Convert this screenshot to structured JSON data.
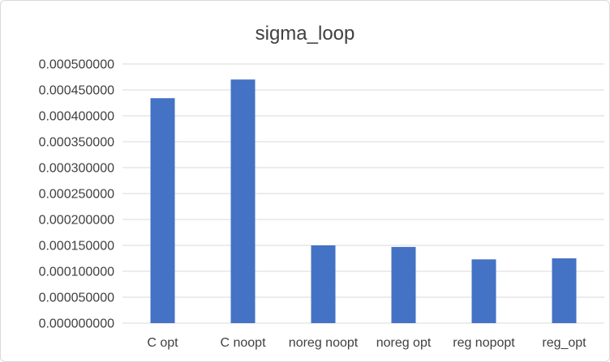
{
  "chart_data": {
    "type": "bar",
    "title": "sigma_loop",
    "xlabel": "",
    "ylabel": "",
    "categories": [
      "C opt",
      "C noopt",
      "noreg noopt",
      "noreg opt",
      "reg nopopt",
      "reg_opt"
    ],
    "values": [
      0.000434,
      0.00047,
      0.00015,
      0.000147,
      0.000123,
      0.000125
    ],
    "ylim": [
      0,
      0.0005
    ],
    "yticks": [
      0,
      5e-05,
      0.0001,
      0.00015,
      0.0002,
      0.00025,
      0.0003,
      0.00035,
      0.0004,
      0.00045,
      0.0005
    ],
    "ytick_labels": [
      "0.000000000",
      "0.000050000",
      "0.000100000",
      "0.000150000",
      "0.000200000",
      "0.000250000",
      "0.000300000",
      "0.000350000",
      "0.000400000",
      "0.000450000",
      "0.000500000"
    ],
    "grid": true,
    "legend": "none",
    "bar_color": "#4472c4",
    "grid_color": "#d9d9d9"
  }
}
